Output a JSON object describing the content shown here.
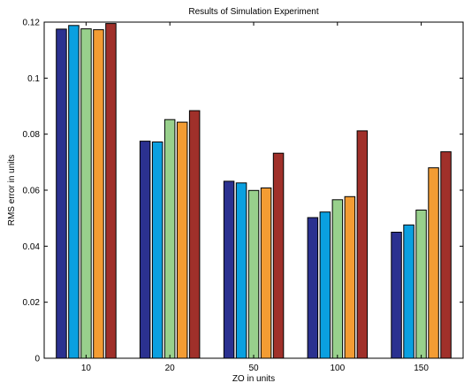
{
  "chart_data": {
    "type": "bar",
    "title": "Results of Simulation Experiment",
    "xlabel": "ZO in units",
    "ylabel": "RMS error in units",
    "categories": [
      "10",
      "20",
      "50",
      "100",
      "150"
    ],
    "ylim": [
      0,
      0.12
    ],
    "yticks": [
      0,
      0.02,
      0.04,
      0.06,
      0.08,
      0.1,
      0.12
    ],
    "ytick_labels": [
      "0",
      "0.02",
      "0.04",
      "0.06",
      "0.08",
      "0.1",
      "0.12"
    ],
    "grid": false,
    "legend": "none",
    "series": [
      {
        "color": "#2b3190",
        "values": [
          0.1175,
          0.0775,
          0.0632,
          0.0502,
          0.045
        ]
      },
      {
        "color": "#0aa0e0",
        "values": [
          0.1188,
          0.0772,
          0.0626,
          0.0522,
          0.0476
        ]
      },
      {
        "color": "#98d08c",
        "values": [
          0.1176,
          0.0852,
          0.0599,
          0.0566,
          0.0529
        ]
      },
      {
        "color": "#f39c33",
        "values": [
          0.1173,
          0.0843,
          0.0608,
          0.0577,
          0.068
        ]
      },
      {
        "color": "#a0302a",
        "values": [
          0.1195,
          0.0884,
          0.0732,
          0.0812,
          0.0737
        ]
      }
    ]
  }
}
